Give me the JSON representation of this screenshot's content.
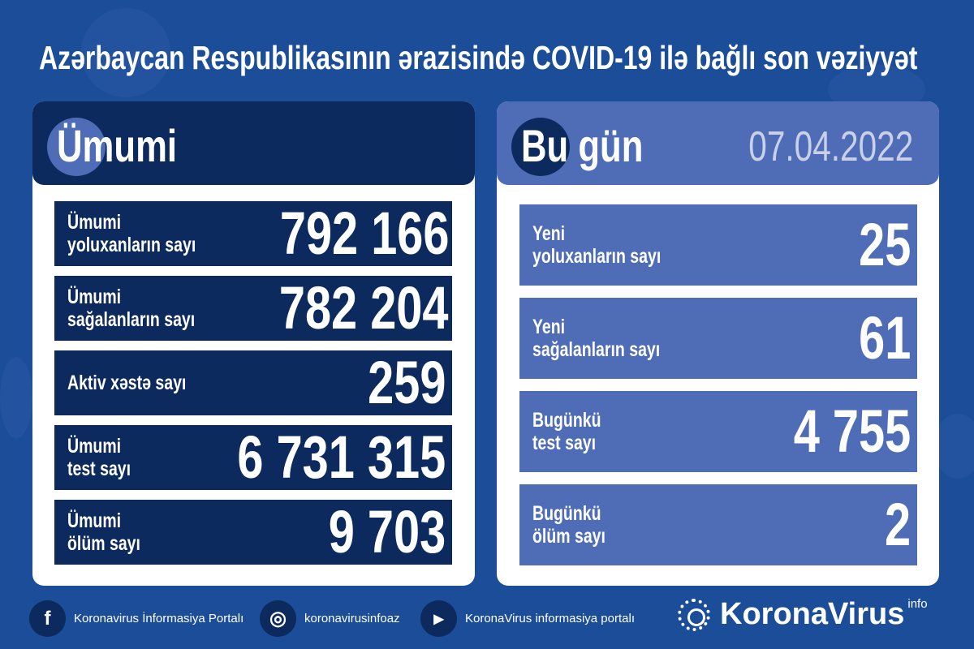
{
  "title": "Azərbaycan Respublikasının ərazisində COVID-19 ilə bağlı son vəziyyət",
  "colors": {
    "background": "#1b4d98",
    "navy": "#0d2a5e",
    "light_blue": "#4f6db6",
    "date": "#c9d0e8"
  },
  "total": {
    "heading": "Ümumi",
    "rows": [
      {
        "label1": "Ümumi",
        "label2": "yoluxanların sayı",
        "value": "792 166"
      },
      {
        "label1": "Ümumi",
        "label2": "sağalanların sayı",
        "value": "782 204"
      },
      {
        "label1": "Aktiv xəstə sayı",
        "label2": "",
        "value": "259"
      },
      {
        "label1": "Ümumi",
        "label2": "test sayı",
        "value": "6 731 315"
      },
      {
        "label1": "Ümumi",
        "label2": "ölüm sayı",
        "value": "9 703"
      }
    ]
  },
  "today": {
    "heading": "Bu gün",
    "date": "07.04.2022",
    "rows": [
      {
        "label1": "Yeni",
        "label2": "yoluxanların sayı",
        "value": "25"
      },
      {
        "label1": "Yeni",
        "label2": "sağalanların sayı",
        "value": "61"
      },
      {
        "label1": "Bugünkü",
        "label2": "test sayı",
        "value": "4 755"
      },
      {
        "label1": "Bugünkü",
        "label2": "ölüm sayı",
        "value": "2"
      }
    ]
  },
  "footer": {
    "items": [
      {
        "icon": "facebook-icon",
        "glyph": "f",
        "text": "Koronavirus İnformasiya Portalı"
      },
      {
        "icon": "instagram-icon",
        "glyph": "◎",
        "text": "koronavirusinfoaz"
      },
      {
        "icon": "youtube-icon",
        "glyph": "▶",
        "text": "KoronaVirus informasiya portalı"
      }
    ],
    "brand": "KoronaVirus",
    "brand_sup": "info"
  }
}
